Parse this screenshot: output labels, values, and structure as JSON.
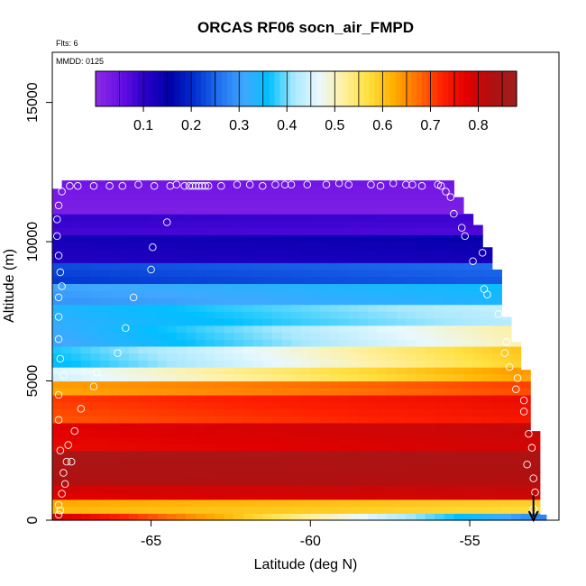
{
  "chart_data": {
    "type": "heatmap",
    "title": "ORCAS RF06 socn_air_FMPD",
    "flights_note": "Flts: 6",
    "date_note": "MMDD: 0125",
    "xlabel": "Latitude (deg N)",
    "ylabel": "Altitude (m)",
    "xlim": [
      -68.1,
      -52.2
    ],
    "ylim": [
      0,
      16800
    ],
    "x_ticks": [
      -65,
      -60,
      -55
    ],
    "x_tick_labels": [
      "-65",
      "-60",
      "-55"
    ],
    "y_ticks": [
      0,
      5000,
      10000,
      15000
    ],
    "y_tick_labels": [
      "0",
      "5000",
      "10000",
      "15000"
    ],
    "colorbar": {
      "min": 0.0,
      "max": 0.88,
      "ticks": [
        0.1,
        0.2,
        0.3,
        0.4,
        0.5,
        0.6,
        0.7,
        0.8
      ],
      "tick_labels": [
        "0.1",
        "0.2",
        "0.3",
        "0.4",
        "0.5",
        "0.6",
        "0.7",
        "0.8"
      ],
      "colors": [
        "#8a2be2",
        "#6a0fe6",
        "#2a00c8",
        "#0000a8",
        "#0030d0",
        "#2070f0",
        "#40a8ff",
        "#00c0ff",
        "#a8e8ff",
        "#e8f8ff",
        "#fff0a0",
        "#ffe040",
        "#ffb000",
        "#ff7000",
        "#ff2000",
        "#e00000",
        "#b01010",
        "#a02020"
      ]
    },
    "top_altitude_profile": [
      {
        "lat": -68.1,
        "alt": 11900
      },
      {
        "lat": -67.8,
        "alt": 12200
      },
      {
        "lat": -55.8,
        "alt": 12200
      },
      {
        "lat": -55.6,
        "alt": 11600
      },
      {
        "lat": -55.2,
        "alt": 11000
      },
      {
        "lat": -54.9,
        "alt": 10600
      },
      {
        "lat": -54.6,
        "alt": 9800
      },
      {
        "lat": -54.4,
        "alt": 9000
      },
      {
        "lat": -54.1,
        "alt": 8200
      },
      {
        "lat": -53.9,
        "alt": 7300
      },
      {
        "lat": -53.7,
        "alt": 6400
      },
      {
        "lat": -53.4,
        "alt": 5400
      },
      {
        "lat": -53.2,
        "alt": 4400
      },
      {
        "lat": -53.0,
        "alt": 3200
      },
      {
        "lat": -52.9,
        "alt": 200
      }
    ],
    "layers": [
      {
        "z0": 0,
        "z1": 300,
        "south": 0.8,
        "north": 0.28
      },
      {
        "z0": 300,
        "z1": 700,
        "south": 0.62,
        "north": 0.58
      },
      {
        "z0": 700,
        "z1": 1200,
        "south": 0.78,
        "north": 0.8
      },
      {
        "z0": 1200,
        "z1": 2500,
        "south": 0.84,
        "north": 0.83
      },
      {
        "z0": 2500,
        "z1": 3600,
        "south": 0.77,
        "north": 0.8
      },
      {
        "z0": 3600,
        "z1": 4400,
        "south": 0.7,
        "north": 0.75
      },
      {
        "z0": 4400,
        "z1": 5000,
        "south": 0.63,
        "north": 0.7
      },
      {
        "z0": 5000,
        "z1": 5500,
        "south": 0.45,
        "north": 0.64
      },
      {
        "z0": 5500,
        "z1": 6200,
        "south": 0.36,
        "north": 0.6
      },
      {
        "z0": 6200,
        "z1": 7000,
        "south": 0.31,
        "north": 0.52
      },
      {
        "z0": 7000,
        "z1": 7800,
        "south": 0.33,
        "north": 0.44
      },
      {
        "z0": 7800,
        "z1": 8500,
        "south": 0.3,
        "north": 0.35
      },
      {
        "z0": 8500,
        "z1": 9200,
        "south": 0.22,
        "north": 0.25
      },
      {
        "z0": 9200,
        "z1": 10200,
        "south": 0.12,
        "north": 0.14
      },
      {
        "z0": 10200,
        "z1": 11000,
        "south": 0.09,
        "north": 0.08
      },
      {
        "z0": 11000,
        "z1": 12200,
        "south": 0.03,
        "north": 0.03
      }
    ],
    "sample_points": [
      {
        "lat": -67.9,
        "alt": 200
      },
      {
        "lat": -67.85,
        "alt": 350
      },
      {
        "lat": -67.9,
        "alt": 550
      },
      {
        "lat": -67.8,
        "alt": 950
      },
      {
        "lat": -67.7,
        "alt": 1300
      },
      {
        "lat": -67.75,
        "alt": 1700
      },
      {
        "lat": -67.65,
        "alt": 2100
      },
      {
        "lat": -67.5,
        "alt": 2100
      },
      {
        "lat": -67.85,
        "alt": 2500
      },
      {
        "lat": -67.6,
        "alt": 2700
      },
      {
        "lat": -67.4,
        "alt": 3200
      },
      {
        "lat": -67.9,
        "alt": 3600
      },
      {
        "lat": -67.2,
        "alt": 4000
      },
      {
        "lat": -67.9,
        "alt": 4500
      },
      {
        "lat": -66.8,
        "alt": 4800
      },
      {
        "lat": -67.75,
        "alt": 5200
      },
      {
        "lat": -66.7,
        "alt": 5300
      },
      {
        "lat": -67.85,
        "alt": 5800
      },
      {
        "lat": -66.05,
        "alt": 6000
      },
      {
        "lat": -67.9,
        "alt": 6500
      },
      {
        "lat": -65.8,
        "alt": 6900
      },
      {
        "lat": -67.9,
        "alt": 7300
      },
      {
        "lat": -65.55,
        "alt": 8000
      },
      {
        "lat": -67.9,
        "alt": 8000
      },
      {
        "lat": -67.8,
        "alt": 8400
      },
      {
        "lat": -67.85,
        "alt": 8900
      },
      {
        "lat": -65.0,
        "alt": 9000
      },
      {
        "lat": -67.9,
        "alt": 9500
      },
      {
        "lat": -64.95,
        "alt": 9800
      },
      {
        "lat": -67.95,
        "alt": 10200
      },
      {
        "lat": -67.95,
        "alt": 10800
      },
      {
        "lat": -64.5,
        "alt": 10700
      },
      {
        "lat": -67.9,
        "alt": 11300
      },
      {
        "lat": -67.8,
        "alt": 11800
      },
      {
        "lat": -67.55,
        "alt": 12000
      },
      {
        "lat": -67.3,
        "alt": 12000
      },
      {
        "lat": -66.8,
        "alt": 12000
      },
      {
        "lat": -66.3,
        "alt": 12000
      },
      {
        "lat": -65.9,
        "alt": 12000
      },
      {
        "lat": -65.4,
        "alt": 12050
      },
      {
        "lat": -64.9,
        "alt": 12000
      },
      {
        "lat": -64.4,
        "alt": 12000
      },
      {
        "lat": -64.2,
        "alt": 12050
      },
      {
        "lat": -63.95,
        "alt": 12000
      },
      {
        "lat": -63.8,
        "alt": 12000
      },
      {
        "lat": -63.7,
        "alt": 12000
      },
      {
        "lat": -63.6,
        "alt": 12000
      },
      {
        "lat": -63.5,
        "alt": 12000
      },
      {
        "lat": -63.4,
        "alt": 12000
      },
      {
        "lat": -63.3,
        "alt": 12000
      },
      {
        "lat": -63.2,
        "alt": 12000
      },
      {
        "lat": -62.8,
        "alt": 12000
      },
      {
        "lat": -62.3,
        "alt": 12050
      },
      {
        "lat": -61.9,
        "alt": 12050
      },
      {
        "lat": -61.5,
        "alt": 12000
      },
      {
        "lat": -61.1,
        "alt": 12050
      },
      {
        "lat": -60.8,
        "alt": 12050
      },
      {
        "lat": -60.6,
        "alt": 12050
      },
      {
        "lat": -60.1,
        "alt": 12050
      },
      {
        "lat": -59.5,
        "alt": 12050
      },
      {
        "lat": -59.1,
        "alt": 12100
      },
      {
        "lat": -58.8,
        "alt": 12050
      },
      {
        "lat": -58.1,
        "alt": 12050
      },
      {
        "lat": -57.8,
        "alt": 12000
      },
      {
        "lat": -57.4,
        "alt": 12100
      },
      {
        "lat": -57.0,
        "alt": 12050
      },
      {
        "lat": -56.8,
        "alt": 12050
      },
      {
        "lat": -56.5,
        "alt": 12000
      },
      {
        "lat": -56.0,
        "alt": 12050
      },
      {
        "lat": -55.9,
        "alt": 12000
      },
      {
        "lat": -55.75,
        "alt": 11800
      },
      {
        "lat": -55.6,
        "alt": 11600
      },
      {
        "lat": -55.5,
        "alt": 11000
      },
      {
        "lat": -55.25,
        "alt": 10500
      },
      {
        "lat": -55.15,
        "alt": 10200
      },
      {
        "lat": -54.9,
        "alt": 9300
      },
      {
        "lat": -54.6,
        "alt": 9600
      },
      {
        "lat": -54.55,
        "alt": 8300
      },
      {
        "lat": -54.45,
        "alt": 8100
      },
      {
        "lat": -54.1,
        "alt": 7400
      },
      {
        "lat": -53.85,
        "alt": 6400
      },
      {
        "lat": -53.9,
        "alt": 6000
      },
      {
        "lat": -53.75,
        "alt": 5500
      },
      {
        "lat": -53.5,
        "alt": 5100
      },
      {
        "lat": -53.55,
        "alt": 4700
      },
      {
        "lat": -53.3,
        "alt": 4300
      },
      {
        "lat": -53.3,
        "alt": 3900
      },
      {
        "lat": -53.15,
        "alt": 3100
      },
      {
        "lat": -53.05,
        "alt": 2600
      },
      {
        "lat": -53.2,
        "alt": 2000
      },
      {
        "lat": -53.0,
        "alt": 1500
      },
      {
        "lat": -52.95,
        "alt": 1000
      },
      {
        "lat": -53.0,
        "alt": 400
      }
    ],
    "marker": {
      "lat": -53.0,
      "alt_top": 900,
      "alt_bottom": 0
    },
    "grid": false,
    "legend": "colorbar top"
  }
}
